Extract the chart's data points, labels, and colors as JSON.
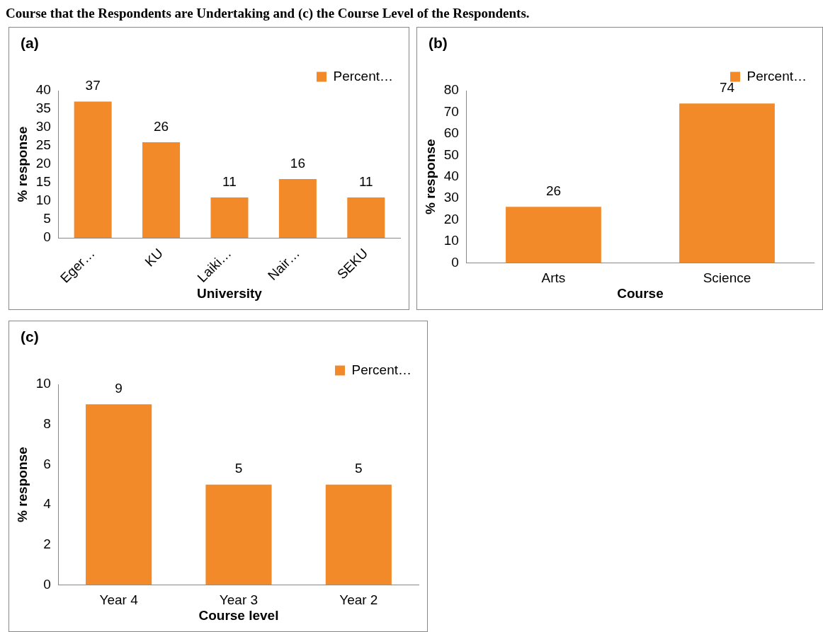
{
  "chart_data": [
    {
      "type": "bar",
      "title": "Course that the Respondents are Undertaking and (c) the Course Level of the Respondents.",
      "annotations": [
        "(a)"
      ],
      "xlabel": "University",
      "ylabel": "% response",
      "categories": [
        "Eger…",
        "KU",
        "Laiki…",
        "Nair…",
        "SEKU"
      ],
      "series": [
        {
          "name": "Percent…",
          "color": "#f28a2a",
          "values": [
            37,
            26,
            11,
            16,
            11
          ]
        }
      ],
      "ylim": [
        0,
        40
      ],
      "yticks": [
        0,
        5,
        10,
        15,
        20,
        25,
        30,
        35,
        40
      ],
      "grid": false,
      "legend": "top right",
      "data_labels": true
    },
    {
      "type": "bar",
      "annotations": [
        "(b)"
      ],
      "xlabel": "Course",
      "ylabel": "% response",
      "categories": [
        "Arts",
        "Science"
      ],
      "series": [
        {
          "name": "Percent…",
          "color": "#f28a2a",
          "values": [
            26,
            74
          ]
        }
      ],
      "ylim": [
        0,
        80
      ],
      "yticks": [
        0,
        10,
        20,
        30,
        40,
        50,
        60,
        70,
        80
      ],
      "grid": false,
      "legend": "top right",
      "data_labels": true
    },
    {
      "type": "bar",
      "annotations": [
        "(c)"
      ],
      "xlabel": "Course level",
      "ylabel": "% response",
      "categories": [
        "Year 4",
        "Year 3",
        "Year 2"
      ],
      "series": [
        {
          "name": "Percent…",
          "color": "#f28a2a",
          "values": [
            9,
            5,
            5
          ]
        }
      ],
      "ylim": [
        0,
        10
      ],
      "yticks": [
        0,
        2,
        4,
        6,
        8,
        10
      ],
      "grid": false,
      "legend": "top right",
      "data_labels": true
    }
  ]
}
